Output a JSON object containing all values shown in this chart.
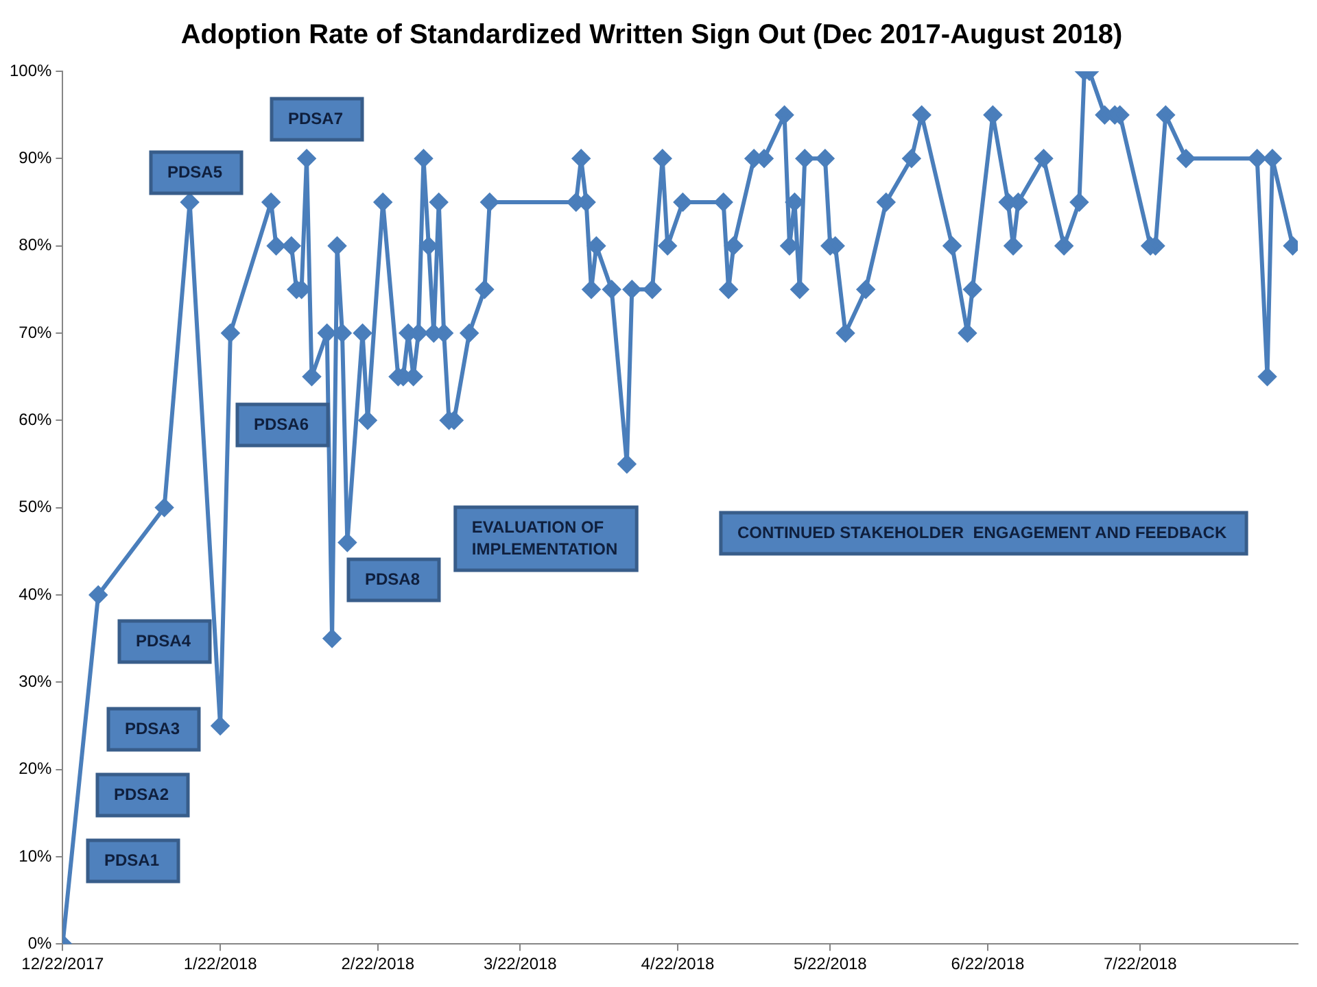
{
  "chart_data": {
    "type": "line",
    "title": "Adoption Rate of Standardized Written Sign Out (Dec 2017-August 2018)",
    "x": [
      "2017-12-22",
      "2017-12-29",
      "2018-01-11",
      "2018-01-16",
      "2018-01-22",
      "2018-01-24",
      "2018-02-01",
      "2018-02-02",
      "2018-02-05",
      "2018-02-06",
      "2018-02-07",
      "2018-02-08",
      "2018-02-09",
      "2018-02-12",
      "2018-02-13",
      "2018-02-14",
      "2018-02-15",
      "2018-02-16",
      "2018-02-19",
      "2018-02-20",
      "2018-02-23",
      "2018-02-26",
      "2018-02-27",
      "2018-02-28",
      "2018-03-01",
      "2018-03-02",
      "2018-03-03",
      "2018-03-04",
      "2018-03-05",
      "2018-03-06",
      "2018-03-07",
      "2018-03-08",
      "2018-03-09",
      "2018-03-12",
      "2018-03-15",
      "2018-03-16",
      "2018-04-02",
      "2018-04-03",
      "2018-04-04",
      "2018-04-05",
      "2018-04-06",
      "2018-04-09",
      "2018-04-12",
      "2018-04-13",
      "2018-04-17",
      "2018-04-19",
      "2018-04-20",
      "2018-04-23",
      "2018-05-01",
      "2018-05-02",
      "2018-05-03",
      "2018-05-07",
      "2018-05-09",
      "2018-05-13",
      "2018-05-14",
      "2018-05-15",
      "2018-05-16",
      "2018-05-17",
      "2018-05-21",
      "2018-05-22",
      "2018-05-23",
      "2018-05-25",
      "2018-05-29",
      "2018-06-02",
      "2018-06-07",
      "2018-06-09",
      "2018-06-15",
      "2018-06-18",
      "2018-06-19",
      "2018-06-23",
      "2018-06-26",
      "2018-06-27",
      "2018-06-28",
      "2018-07-03",
      "2018-07-07",
      "2018-07-10",
      "2018-07-11",
      "2018-07-12",
      "2018-07-15",
      "2018-07-17",
      "2018-07-18",
      "2018-07-24",
      "2018-07-25",
      "2018-07-27",
      "2018-07-31",
      "2018-08-14",
      "2018-08-16",
      "2018-08-17",
      "2018-08-21"
    ],
    "series": [
      {
        "color": "#4a7ebb",
        "values": [
          0,
          40,
          50,
          85,
          25,
          70,
          85,
          80,
          80,
          75,
          75,
          90,
          65,
          70,
          35,
          80,
          70,
          46,
          70,
          60,
          85,
          65,
          65,
          70,
          65,
          70,
          90,
          80,
          70,
          85,
          70,
          60,
          60,
          70,
          75,
          85,
          85,
          90,
          85,
          75,
          80,
          75,
          55,
          75,
          75,
          90,
          80,
          85,
          85,
          75,
          80,
          90,
          90,
          95,
          80,
          85,
          75,
          90,
          90,
          80,
          80,
          70,
          75,
          85,
          90,
          95,
          80,
          70,
          75,
          95,
          85,
          80,
          85,
          90,
          80,
          85,
          100,
          100,
          95,
          95,
          95,
          80,
          80,
          95,
          90,
          90,
          65,
          90,
          80
        ]
      }
    ],
    "xlim": [
      "2017-12-22",
      "2018-08-22"
    ],
    "xticks": [
      {
        "value": "2017-12-22",
        "label": "12/22/2017"
      },
      {
        "value": "2018-01-22",
        "label": "1/22/2018"
      },
      {
        "value": "2018-02-22",
        "label": "2/22/2018"
      },
      {
        "value": "2018-03-22",
        "label": "3/22/2018"
      },
      {
        "value": "2018-04-22",
        "label": "4/22/2018"
      },
      {
        "value": "2018-05-22",
        "label": "5/22/2018"
      },
      {
        "value": "2018-06-22",
        "label": "6/22/2018"
      },
      {
        "value": "2018-07-22",
        "label": "7/22/2018"
      }
    ],
    "ylim": [
      0,
      100
    ],
    "yticks": [
      {
        "value": 0,
        "label": "0%"
      },
      {
        "value": 10,
        "label": "10%"
      },
      {
        "value": 20,
        "label": "20%"
      },
      {
        "value": 30,
        "label": "30%"
      },
      {
        "value": 40,
        "label": "40%"
      },
      {
        "value": 50,
        "label": "50%"
      },
      {
        "value": 60,
        "label": "60%"
      },
      {
        "value": 70,
        "label": "70%"
      },
      {
        "value": 80,
        "label": "80%"
      },
      {
        "value": 90,
        "label": "90%"
      },
      {
        "value": 100,
        "label": "100%"
      }
    ],
    "grid": false,
    "legend": false,
    "marker": "diamond",
    "line_style": "solid",
    "annotations": [
      "PDSA1",
      "PDSA2",
      "PDSA3",
      "PDSA4",
      "PDSA5",
      "PDSA6",
      "PDSA7",
      "PDSA8",
      "EVALUATION OF\nIMPLEMENTATION",
      "CONTINUED STAKEHOLDER  ENGAGEMENT AND FEEDBACK"
    ]
  }
}
